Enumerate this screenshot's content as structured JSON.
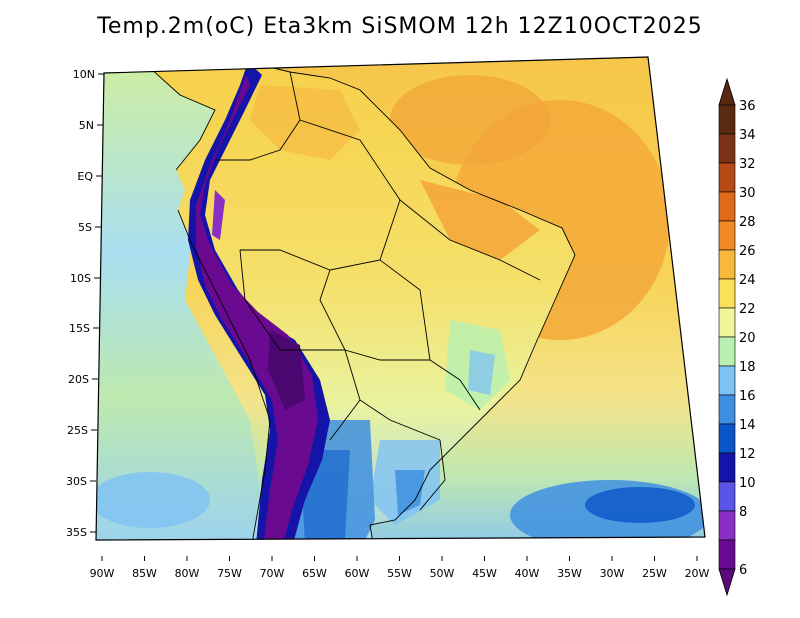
{
  "title": "Temp.2m(oC) Eta3km SiSMOM 12h 12Z10OCT2025",
  "axes": {
    "lat_labels": [
      "10N",
      "5N",
      "EQ",
      "5S",
      "10S",
      "15S",
      "20S",
      "25S",
      "30S",
      "35S"
    ],
    "lon_labels": [
      "90W",
      "85W",
      "80W",
      "75W",
      "70W",
      "65W",
      "60W",
      "55W",
      "50W",
      "45W",
      "40W",
      "35W",
      "30W",
      "25W",
      "20W"
    ]
  },
  "colorbar": {
    "labels": [
      "6",
      "8",
      "10",
      "12",
      "14",
      "16",
      "18",
      "20",
      "22",
      "24",
      "26",
      "28",
      "30",
      "32",
      "34",
      "36"
    ],
    "colors": [
      "#6a0a91",
      "#8a2fc4",
      "#5a55e6",
      "#1414a8",
      "#0a55c8",
      "#3f8fe0",
      "#7ec2f5",
      "#b7f0b0",
      "#eef59a",
      "#fbe05a",
      "#f6b93c",
      "#f08a24",
      "#e0691a",
      "#b44a16",
      "#7a3316",
      "#5b2a12"
    ],
    "low_color": "#5b0a80",
    "high_color": "#5a2812"
  },
  "map_colors": {
    "ocean_warm": "#f6b93c",
    "ocean_mid": "#fbe05a",
    "ocean_cool": "#b7f0b0",
    "ocean_cold": "#7ec2f5",
    "southern_blue": "#3f8fe0",
    "andes_high": "#6a0a91",
    "border": "#000000"
  }
}
